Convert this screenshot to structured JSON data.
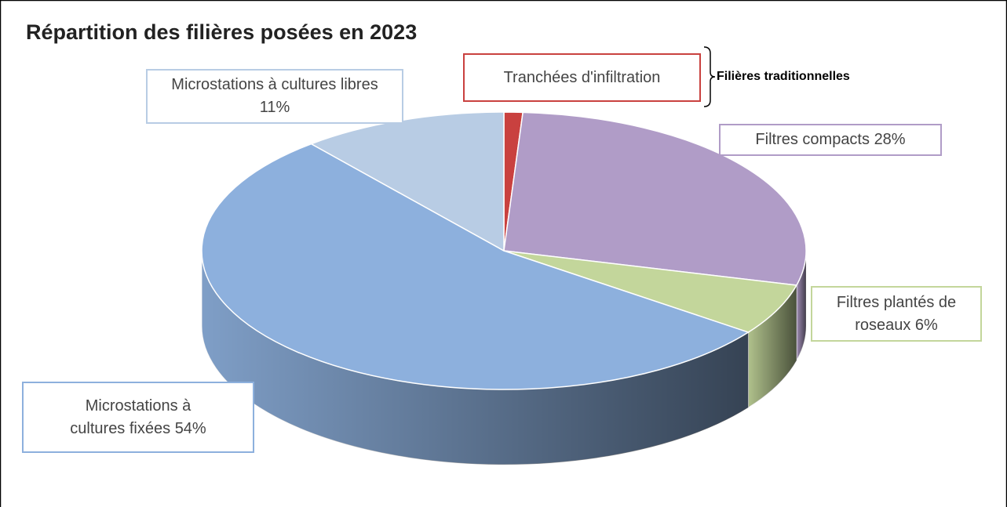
{
  "chart_data": {
    "type": "pie",
    "title": "Répartition des filières posées en 2023",
    "categories": [
      "Tranchées d'infiltration",
      "Filtres compacts",
      "Filtres plantés de roseaux",
      "Microstations à cultures fixées",
      "Microstations à cultures libres"
    ],
    "values": [
      1,
      28,
      6,
      54,
      11
    ],
    "value_labels": [
      null,
      "28%",
      "6%",
      "54%",
      "11%"
    ],
    "colors": [
      "#c9413f",
      "#b09cc7",
      "#c3d69b",
      "#8db0dd",
      "#b8cce4"
    ],
    "annotation": "Filières traditionnelles"
  }
}
